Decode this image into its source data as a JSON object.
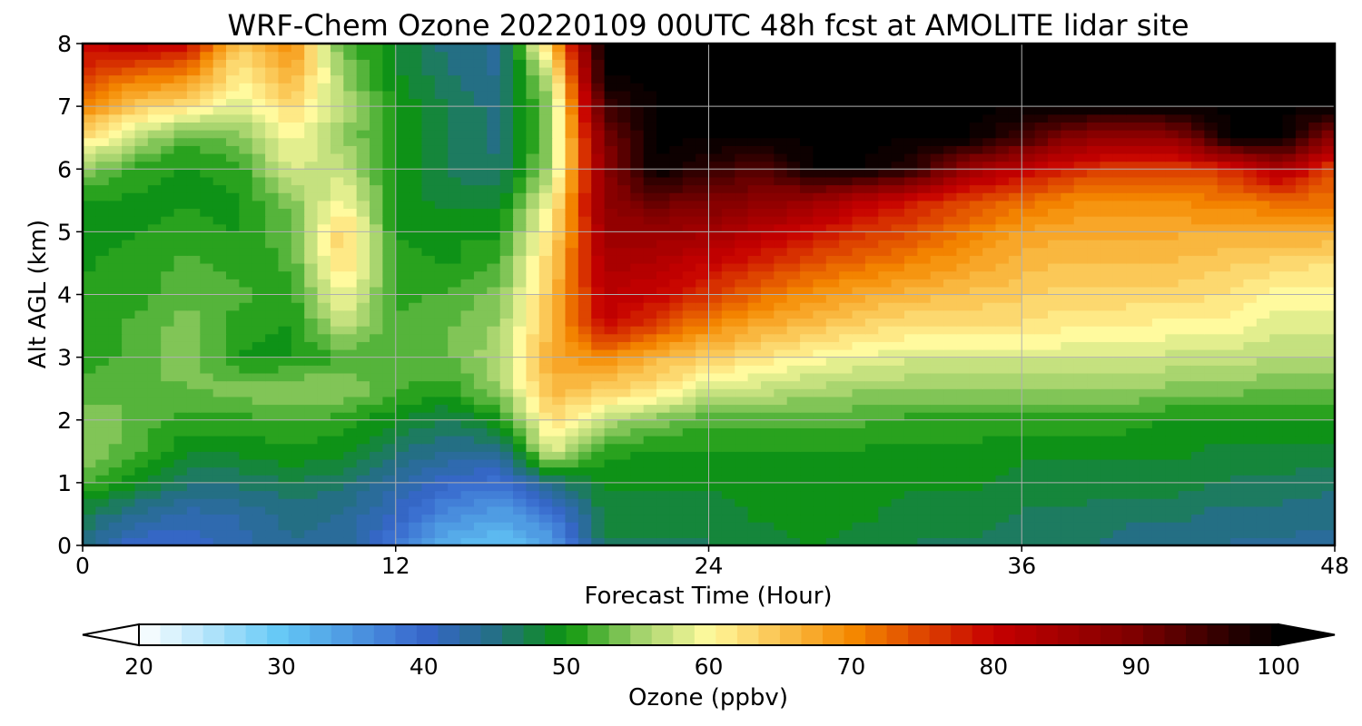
{
  "chart_data": {
    "type": "heatmap",
    "title": "WRF-Chem Ozone  20220109 00UTC 48h fcst at AMOLITE lidar site",
    "xlabel": "Forecast Time (Hour)",
    "ylabel": "Alt AGL (km)",
    "xlim": [
      0,
      48
    ],
    "ylim": [
      0,
      8
    ],
    "xticks": [
      0,
      12,
      24,
      36,
      48
    ],
    "yticks": [
      0,
      1,
      2,
      3,
      4,
      5,
      6,
      7,
      8
    ],
    "grid": true,
    "x_hours": [
      0,
      2,
      4,
      6,
      8,
      10,
      12,
      14,
      16,
      18,
      20,
      22,
      24,
      26,
      28,
      30,
      32,
      34,
      36,
      38,
      40,
      42,
      44,
      46,
      48
    ],
    "y_km": [
      0,
      0.5,
      1,
      1.5,
      2,
      2.5,
      3,
      3.5,
      4,
      4.5,
      5,
      5.5,
      6,
      6.5,
      7,
      7.5,
      8
    ],
    "ozone_ppbv": [
      [
        45,
        40,
        40,
        42,
        44,
        44,
        38,
        32,
        30,
        34,
        47,
        47,
        47,
        48,
        49,
        48,
        47,
        47,
        46,
        46,
        45,
        45,
        44,
        44,
        43
      ],
      [
        47,
        44,
        42,
        43,
        45,
        44,
        41,
        36,
        34,
        38,
        48,
        48,
        48,
        49,
        49,
        49,
        48,
        48,
        47,
        47,
        46,
        46,
        45,
        45,
        45
      ],
      [
        52,
        49,
        46,
        46,
        47,
        46,
        43,
        40,
        39,
        45,
        49,
        49,
        49,
        49,
        49,
        49,
        49,
        49,
        48,
        48,
        48,
        48,
        47,
        47,
        46
      ],
      [
        55,
        52,
        49,
        49,
        50,
        49,
        46,
        44,
        44,
        58,
        51,
        50,
        50,
        50,
        50,
        50,
        50,
        50,
        49,
        49,
        49,
        49,
        48,
        48,
        48
      ],
      [
        55,
        53,
        51,
        51,
        52,
        51,
        49,
        47,
        50,
        63,
        56,
        54,
        52,
        52,
        52,
        52,
        51,
        51,
        51,
        51,
        51,
        50,
        50,
        50,
        50
      ],
      [
        52,
        53,
        53,
        54,
        55,
        55,
        52,
        51,
        55,
        66,
        64,
        62,
        58,
        57,
        56,
        55,
        55,
        55,
        55,
        55,
        55,
        54,
        54,
        53,
        53
      ],
      [
        51,
        52,
        55,
        50,
        50,
        52,
        52,
        53,
        56,
        67,
        70,
        66,
        64,
        62,
        60,
        59,
        58,
        58,
        58,
        58,
        58,
        57,
        57,
        56,
        56
      ],
      [
        51,
        52,
        54,
        51,
        50,
        57,
        52,
        53,
        55,
        66,
        80,
        75,
        70,
        67,
        65,
        63,
        62,
        62,
        62,
        61,
        61,
        60,
        60,
        58,
        58
      ],
      [
        51,
        51,
        53,
        52,
        51,
        60,
        51,
        52,
        54,
        65,
        82,
        80,
        76,
        72,
        69,
        67,
        66,
        65,
        64,
        63,
        63,
        63,
        62,
        60,
        60
      ],
      [
        50,
        51,
        52,
        51,
        52,
        63,
        51,
        50,
        52,
        64,
        84,
        83,
        80,
        77,
        74,
        72,
        70,
        68,
        66,
        65,
        65,
        65,
        64,
        63,
        62
      ],
      [
        49,
        50,
        51,
        50,
        53,
        64,
        50,
        50,
        50,
        62,
        86,
        86,
        85,
        82,
        79,
        76,
        74,
        71,
        68,
        67,
        67,
        67,
        67,
        67,
        67
      ],
      [
        50,
        50,
        50,
        50,
        54,
        60,
        50,
        48,
        48,
        60,
        88,
        92,
        90,
        88,
        86,
        82,
        78,
        75,
        72,
        70,
        70,
        70,
        71,
        72,
        72
      ],
      [
        55,
        51,
        50,
        51,
        58,
        57,
        50,
        47,
        46,
        56,
        88,
        100,
        96,
        93,
        100,
        100,
        96,
        86,
        81,
        77,
        75,
        75,
        77,
        84,
        74
      ],
      [
        62,
        57,
        52,
        54,
        60,
        55,
        50,
        47,
        45,
        55,
        90,
        100,
        100,
        100,
        100,
        100,
        100,
        100,
        95,
        88,
        86,
        88,
        100,
        100,
        87
      ],
      [
        70,
        64,
        62,
        58,
        63,
        56,
        50,
        47,
        45,
        55,
        95,
        100,
        100,
        100,
        100,
        100,
        100,
        100,
        100,
        100,
        100,
        100,
        100,
        100,
        100
      ],
      [
        76,
        72,
        70,
        61,
        67,
        55,
        49,
        46,
        44,
        58,
        100,
        100,
        100,
        100,
        100,
        100,
        100,
        100,
        100,
        100,
        100,
        100,
        100,
        100,
        100
      ],
      [
        80,
        82,
        80,
        64,
        70,
        52,
        49,
        45,
        44,
        65,
        100,
        100,
        100,
        100,
        100,
        100,
        100,
        100,
        100,
        100,
        100,
        100,
        100,
        100,
        100
      ]
    ],
    "colorbar": {
      "label": "Ozone  (ppbv)",
      "min": 20,
      "max": 100,
      "ticks": [
        20,
        30,
        40,
        50,
        60,
        70,
        80,
        90,
        100
      ],
      "extend": "both",
      "under_color": "#ffffff",
      "over_color": "#000000",
      "stops": [
        {
          "v": 20,
          "c": "#ffffff"
        },
        {
          "v": 30,
          "c": "#63c8f6"
        },
        {
          "v": 40,
          "c": "#3766cc"
        },
        {
          "v": 45,
          "c": "#246f84"
        },
        {
          "v": 50,
          "c": "#0b960b"
        },
        {
          "v": 55,
          "c": "#9fd16a"
        },
        {
          "v": 60,
          "c": "#fffa9e"
        },
        {
          "v": 70,
          "c": "#f58a00"
        },
        {
          "v": 80,
          "c": "#c70000"
        },
        {
          "v": 90,
          "c": "#7d0000"
        },
        {
          "v": 100,
          "c": "#000000"
        }
      ]
    }
  }
}
